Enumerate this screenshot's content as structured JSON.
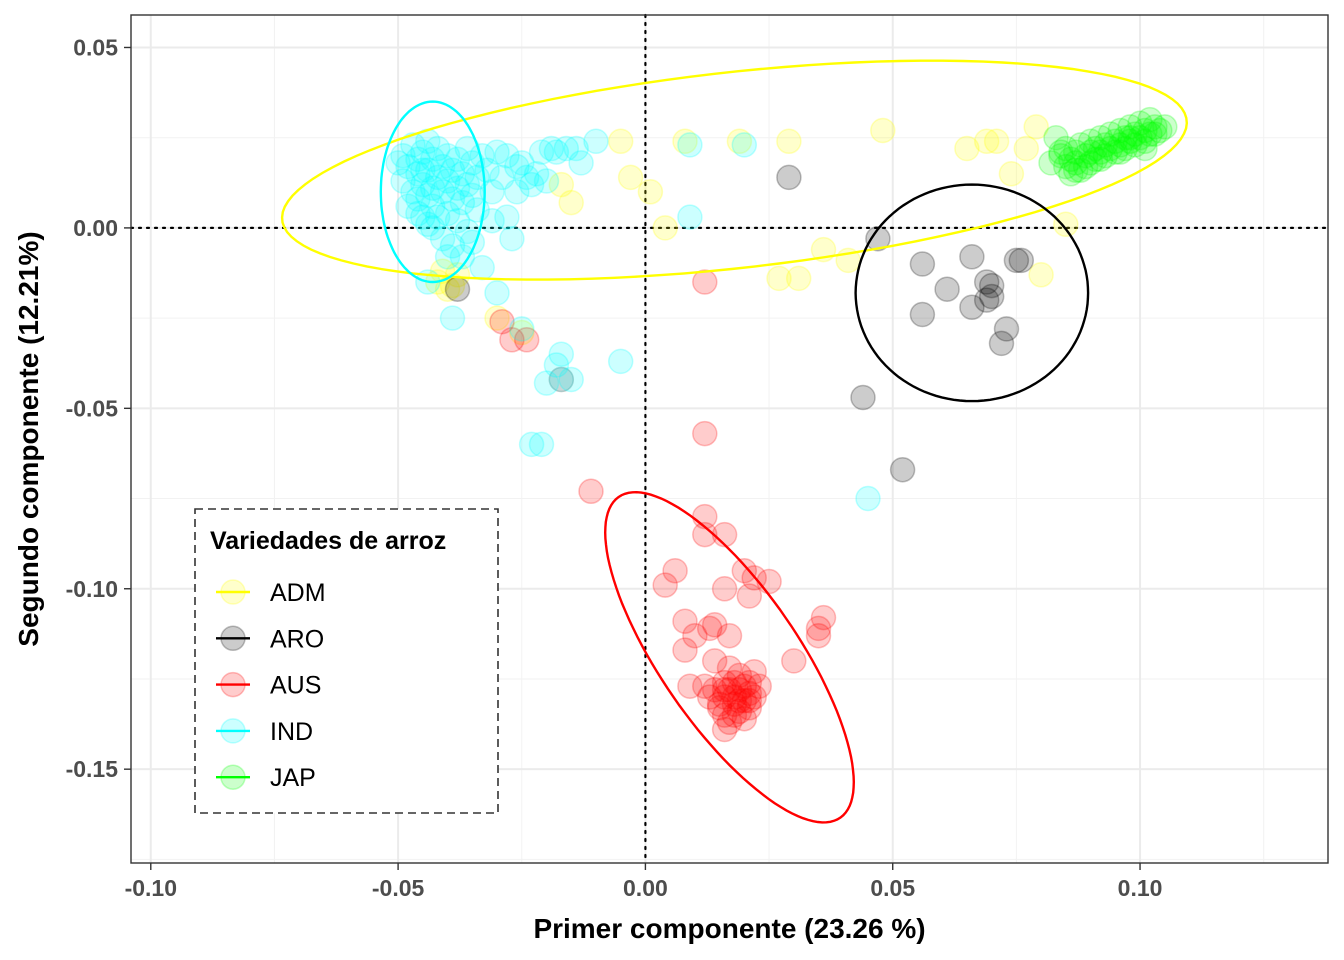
{
  "chart_data": {
    "type": "scatter",
    "xlabel": "Primer componente (23.26 %)",
    "ylabel": "Segundo componente (12.21%)",
    "xlim": [
      -0.104,
      0.138
    ],
    "ylim": [
      -0.176,
      0.059
    ],
    "x_ticks": [
      -0.1,
      -0.05,
      0.0,
      0.05,
      0.1
    ],
    "x_tick_labels": [
      "-0.10",
      "-0.05",
      "0.00",
      "0.05",
      "0.10"
    ],
    "y_ticks": [
      -0.15,
      -0.1,
      -0.05,
      0.0,
      0.05
    ],
    "y_tick_labels": [
      "-0.15",
      "-0.10",
      "-0.05",
      "0.00",
      "0.05"
    ],
    "reference_lines": {
      "x": 0,
      "y": 0,
      "style": "dotted"
    },
    "grid": true,
    "legend": {
      "title": "Variedades de arroz",
      "position": "bottom-left",
      "border": "dashed"
    },
    "series": [
      {
        "name": "ADM",
        "color": "#ffff00",
        "ellipse": {
          "cx": 0.018,
          "cy": 0.016,
          "rx": 0.0925,
          "ry": 0.027,
          "angle_deg": 9
        },
        "points": [
          [
            -0.042,
            -0.015
          ],
          [
            -0.04,
            -0.017
          ],
          [
            -0.041,
            -0.012
          ],
          [
            -0.038,
            -0.013
          ],
          [
            -0.039,
            -0.016
          ],
          [
            -0.03,
            -0.025
          ],
          [
            -0.025,
            -0.029
          ],
          [
            -0.017,
            0.012
          ],
          [
            -0.015,
            0.007
          ],
          [
            -0.005,
            0.024
          ],
          [
            -0.003,
            0.014
          ],
          [
            0.001,
            0.01
          ],
          [
            0.004,
            0.0
          ],
          [
            0.008,
            0.024
          ],
          [
            0.019,
            0.024
          ],
          [
            0.029,
            0.024
          ],
          [
            0.027,
            -0.014
          ],
          [
            0.031,
            -0.014
          ],
          [
            0.036,
            -0.006
          ],
          [
            0.041,
            -0.009
          ],
          [
            0.048,
            0.027
          ],
          [
            0.065,
            0.022
          ],
          [
            0.069,
            0.024
          ],
          [
            0.071,
            0.024
          ],
          [
            0.074,
            0.015
          ],
          [
            0.077,
            0.022
          ],
          [
            0.079,
            0.028
          ],
          [
            0.08,
            -0.013
          ],
          [
            0.085,
            0.001
          ]
        ]
      },
      {
        "name": "ARO",
        "color": "#000000",
        "ellipse": {
          "cx": 0.066,
          "cy": -0.018,
          "rx": 0.0235,
          "ry": 0.03,
          "angle_deg": 0
        },
        "points": [
          [
            -0.038,
            -0.017
          ],
          [
            0.029,
            0.014
          ],
          [
            0.047,
            -0.003
          ],
          [
            0.044,
            -0.047
          ],
          [
            0.052,
            -0.067
          ],
          [
            0.056,
            -0.01
          ],
          [
            0.056,
            -0.024
          ],
          [
            0.061,
            -0.017
          ],
          [
            0.066,
            -0.008
          ],
          [
            0.066,
            -0.022
          ],
          [
            0.069,
            -0.02
          ],
          [
            0.069,
            -0.015
          ],
          [
            0.07,
            -0.016
          ],
          [
            0.07,
            -0.019
          ],
          [
            0.072,
            -0.032
          ],
          [
            0.073,
            -0.028
          ],
          [
            0.075,
            -0.009
          ],
          [
            0.076,
            -0.009
          ]
        ]
      },
      {
        "name": "AUS",
        "color": "#ff0000",
        "ellipse": {
          "cx": 0.017,
          "cy": -0.119,
          "rx": 0.05,
          "ry": 0.015,
          "angle_deg": -65
        },
        "points": [
          [
            -0.029,
            -0.026
          ],
          [
            -0.027,
            -0.031
          ],
          [
            -0.024,
            -0.031
          ],
          [
            -0.017,
            -0.042
          ],
          [
            -0.011,
            -0.073
          ],
          [
            0.012,
            -0.057
          ],
          [
            0.012,
            -0.015
          ],
          [
            0.006,
            -0.095
          ],
          [
            0.012,
            -0.08
          ],
          [
            0.012,
            -0.085
          ],
          [
            0.016,
            -0.085
          ],
          [
            0.02,
            -0.095
          ],
          [
            0.021,
            -0.102
          ],
          [
            0.025,
            -0.098
          ],
          [
            0.004,
            -0.099
          ],
          [
            0.008,
            -0.109
          ],
          [
            0.01,
            -0.113
          ],
          [
            0.013,
            -0.111
          ],
          [
            0.014,
            -0.11
          ],
          [
            0.017,
            -0.113
          ],
          [
            0.016,
            -0.1
          ],
          [
            0.022,
            -0.097
          ],
          [
            0.008,
            -0.117
          ],
          [
            0.014,
            -0.12
          ],
          [
            0.016,
            -0.128
          ],
          [
            0.03,
            -0.12
          ],
          [
            0.035,
            -0.113
          ],
          [
            0.035,
            -0.111
          ],
          [
            0.036,
            -0.108
          ],
          [
            0.009,
            -0.127
          ],
          [
            0.012,
            -0.127
          ],
          [
            0.013,
            -0.13
          ],
          [
            0.015,
            -0.132
          ],
          [
            0.016,
            -0.13
          ],
          [
            0.016,
            -0.135
          ],
          [
            0.017,
            -0.137
          ],
          [
            0.018,
            -0.126
          ],
          [
            0.018,
            -0.132
          ],
          [
            0.019,
            -0.128
          ],
          [
            0.019,
            -0.134
          ],
          [
            0.02,
            -0.127
          ],
          [
            0.02,
            -0.131
          ],
          [
            0.021,
            -0.129
          ],
          [
            0.021,
            -0.126
          ],
          [
            0.022,
            -0.13
          ],
          [
            0.021,
            -0.133
          ],
          [
            0.016,
            -0.139
          ],
          [
            0.017,
            -0.122
          ],
          [
            0.019,
            -0.124
          ],
          [
            0.022,
            -0.123
          ],
          [
            0.015,
            -0.133
          ],
          [
            0.02,
            -0.136
          ],
          [
            0.018,
            -0.13
          ],
          [
            0.017,
            -0.128
          ],
          [
            0.019,
            -0.131
          ],
          [
            0.018,
            -0.135
          ],
          [
            0.014,
            -0.128
          ],
          [
            0.021,
            -0.131
          ],
          [
            0.016,
            -0.126
          ],
          [
            0.023,
            -0.127
          ]
        ]
      },
      {
        "name": "IND",
        "color": "#00ffff",
        "ellipse": {
          "cx": -0.043,
          "cy": 0.01,
          "rx": 0.0105,
          "ry": 0.025,
          "angle_deg": 0
        },
        "points": [
          [
            -0.05,
            0.018
          ],
          [
            -0.049,
            0.02
          ],
          [
            -0.049,
            0.013
          ],
          [
            -0.048,
            0.006
          ],
          [
            -0.048,
            0.017
          ],
          [
            -0.047,
            0.023
          ],
          [
            -0.047,
            0.01
          ],
          [
            -0.046,
            0.015
          ],
          [
            -0.046,
            0.019
          ],
          [
            -0.046,
            0.008
          ],
          [
            -0.045,
            0.021
          ],
          [
            -0.045,
            0.012
          ],
          [
            -0.045,
            0.003
          ],
          [
            -0.044,
            0.024
          ],
          [
            -0.044,
            0.016
          ],
          [
            -0.044,
            0.009
          ],
          [
            -0.043,
            0.019
          ],
          [
            -0.043,
            0.006
          ],
          [
            -0.043,
            0.0
          ],
          [
            -0.042,
            0.022
          ],
          [
            -0.042,
            0.014
          ],
          [
            -0.042,
            0.003
          ],
          [
            -0.041,
            0.017
          ],
          [
            -0.041,
            0.01
          ],
          [
            -0.041,
            -0.003
          ],
          [
            -0.04,
            0.02
          ],
          [
            -0.04,
            0.013
          ],
          [
            -0.04,
            0.004
          ],
          [
            -0.039,
            0.016
          ],
          [
            -0.039,
            0.008
          ],
          [
            -0.039,
            -0.005
          ],
          [
            -0.038,
            0.019
          ],
          [
            -0.038,
            0.011
          ],
          [
            -0.038,
            0.002
          ],
          [
            -0.037,
            0.015
          ],
          [
            -0.037,
            0.007
          ],
          [
            -0.037,
            -0.008
          ],
          [
            -0.036,
            0.022
          ],
          [
            -0.036,
            0.012
          ],
          [
            -0.036,
            -0.001
          ],
          [
            -0.035,
            0.018
          ],
          [
            -0.035,
            0.009
          ],
          [
            -0.035,
            -0.004
          ],
          [
            -0.034,
            0.014
          ],
          [
            -0.034,
            0.005
          ],
          [
            -0.033,
            0.02
          ],
          [
            -0.033,
            -0.011
          ],
          [
            -0.032,
            0.016
          ],
          [
            -0.031,
            0.01
          ],
          [
            -0.031,
            0.002
          ],
          [
            -0.03,
            0.021
          ],
          [
            -0.03,
            -0.018
          ],
          [
            -0.029,
            0.014
          ],
          [
            -0.028,
            0.02
          ],
          [
            -0.028,
            0.003
          ],
          [
            -0.027,
            -0.003
          ],
          [
            -0.026,
            0.017
          ],
          [
            -0.026,
            0.01
          ],
          [
            -0.025,
            0.018
          ],
          [
            -0.025,
            -0.028
          ],
          [
            -0.024,
            0.014
          ],
          [
            -0.023,
            0.012
          ],
          [
            -0.022,
            0.015
          ],
          [
            -0.021,
            0.021
          ],
          [
            -0.02,
            0.013
          ],
          [
            -0.019,
            0.022
          ],
          [
            -0.018,
            0.021
          ],
          [
            -0.016,
            0.022
          ],
          [
            -0.014,
            0.022
          ],
          [
            -0.013,
            0.018
          ],
          [
            -0.01,
            0.024
          ],
          [
            -0.017,
            -0.035
          ],
          [
            -0.018,
            -0.038
          ],
          [
            -0.017,
            -0.042
          ],
          [
            -0.02,
            -0.043
          ],
          [
            -0.015,
            -0.042
          ],
          [
            -0.023,
            -0.06
          ],
          [
            -0.021,
            -0.06
          ],
          [
            -0.005,
            -0.037
          ],
          [
            0.009,
            0.023
          ],
          [
            0.009,
            0.003
          ],
          [
            0.02,
            0.023
          ],
          [
            0.045,
            -0.075
          ],
          [
            -0.044,
            -0.015
          ],
          [
            -0.039,
            -0.025
          ],
          [
            -0.044,
            0.001
          ],
          [
            -0.046,
            0.004
          ],
          [
            -0.04,
            -0.008
          ],
          [
            -0.043,
            0.011
          ],
          [
            -0.045,
            0.016
          ]
        ]
      },
      {
        "name": "JAP",
        "color": "#00ff00",
        "ellipse": null,
        "points": [
          [
            0.082,
            0.018
          ],
          [
            0.083,
            0.025
          ],
          [
            0.084,
            0.02
          ],
          [
            0.085,
            0.017
          ],
          [
            0.085,
            0.022
          ],
          [
            0.086,
            0.019
          ],
          [
            0.086,
            0.015
          ],
          [
            0.087,
            0.021
          ],
          [
            0.087,
            0.018
          ],
          [
            0.088,
            0.016
          ],
          [
            0.088,
            0.023
          ],
          [
            0.089,
            0.02
          ],
          [
            0.089,
            0.017
          ],
          [
            0.09,
            0.024
          ],
          [
            0.09,
            0.021
          ],
          [
            0.09,
            0.018
          ],
          [
            0.091,
            0.022
          ],
          [
            0.091,
            0.019
          ],
          [
            0.092,
            0.025
          ],
          [
            0.092,
            0.021
          ],
          [
            0.093,
            0.023
          ],
          [
            0.093,
            0.02
          ],
          [
            0.094,
            0.026
          ],
          [
            0.094,
            0.022
          ],
          [
            0.095,
            0.024
          ],
          [
            0.095,
            0.021
          ],
          [
            0.096,
            0.027
          ],
          [
            0.096,
            0.023
          ],
          [
            0.097,
            0.025
          ],
          [
            0.097,
            0.022
          ],
          [
            0.098,
            0.028
          ],
          [
            0.098,
            0.024
          ],
          [
            0.099,
            0.026
          ],
          [
            0.099,
            0.023
          ],
          [
            0.1,
            0.029
          ],
          [
            0.1,
            0.025
          ],
          [
            0.101,
            0.027
          ],
          [
            0.101,
            0.024
          ],
          [
            0.102,
            0.03
          ],
          [
            0.102,
            0.026
          ],
          [
            0.103,
            0.028
          ],
          [
            0.104,
            0.027
          ],
          [
            0.105,
            0.028
          ],
          [
            0.101,
            0.022
          ],
          [
            0.084,
            0.021
          ],
          [
            0.087,
            0.016
          ],
          [
            0.092,
            0.019
          ],
          [
            0.096,
            0.021
          ],
          [
            0.098,
            0.025
          ],
          [
            0.103,
            0.026
          ]
        ]
      }
    ]
  }
}
